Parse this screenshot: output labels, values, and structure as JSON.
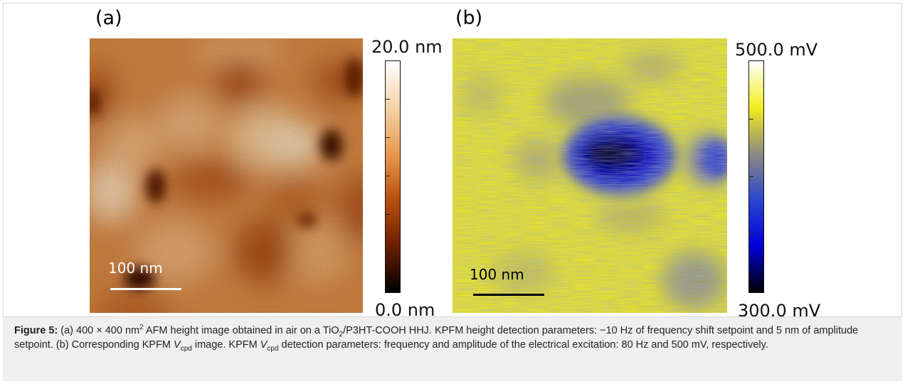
{
  "figure": {
    "panel_a": {
      "letter": "(a)",
      "colorbar_max_label": "20.0 nm",
      "colorbar_min_label": "0.0 nm",
      "scale_bar_label": "100 nm",
      "colors": [
        "#000000",
        "#6b1e00",
        "#b8500e",
        "#e79a4f",
        "#f4d3a8",
        "#ffffff"
      ]
    },
    "panel_b": {
      "letter": "(b)",
      "colorbar_max_label": "500.0 mV",
      "colorbar_min_label": "300.0 mV",
      "scale_bar_label": "100 nm",
      "colors": [
        "#000000",
        "#0000d8",
        "#2a46d0",
        "#8e8a80",
        "#f2ee1e",
        "#ffffff"
      ]
    },
    "caption": {
      "label": "Figure 5:",
      "t1": " (a) 400 × 400 nm",
      "sup1": "2",
      "t2": " AFM height image obtained in air on a TiO",
      "sub1": "2",
      "t3": "/P3HT-COOH HHJ. KPFM height detection parameters: −10 Hz of frequency shift setpoint and 5 nm of amplitude setpoint. (b) Corresponding KPFM ",
      "v1": "V",
      "sub2": "cpd",
      "t4": " image. KPFM ",
      "v2": "V",
      "sub3": "cpd",
      "t5": " detection parameters: frequency and amplitude of the electrical excitation: 80 Hz and 500 mV, respectively."
    }
  }
}
